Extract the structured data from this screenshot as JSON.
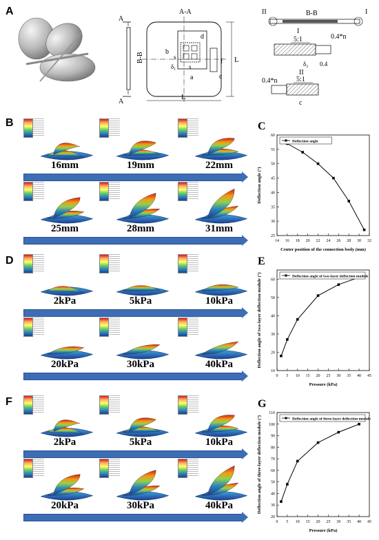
{
  "panelA": {
    "letter": "A",
    "section_aa": "A-A",
    "section_bb": "B-B",
    "section_bb_side": "B-B",
    "mark_a_top": "A",
    "mark_a_bottom": "A",
    "mark_i": "I",
    "mark_ii": "II",
    "mark_i_detail": "I",
    "mark_ii_detail": "II",
    "dim_a": "a",
    "dim_b": "b",
    "dim_c": "c",
    "dim_d": "d",
    "dim_f": "f",
    "dim_s": "s",
    "dim_s_small": "s",
    "dim_L_h": "L",
    "dim_L_v": "L",
    "dim_delta1": "δ₁",
    "dim_delta2": "δ₂",
    "scale1": "5:1",
    "scale2": "5:1",
    "dim_04n_top": "0.4*n",
    "dim_04": "0.4",
    "dim_04n_bottom": "0.4*n",
    "dim_c_detail": "c"
  },
  "panelB": {
    "letter": "B",
    "labels": [
      "16mm",
      "19mm",
      "22mm",
      "25mm",
      "28mm",
      "31mm"
    ]
  },
  "panelD": {
    "letter": "D",
    "labels": [
      "2kPa",
      "5kPa",
      "10kPa",
      "20kPa",
      "30kPa",
      "40kPa"
    ]
  },
  "panelF": {
    "letter": "F",
    "labels": [
      "2kPa",
      "5kPa",
      "10kPa",
      "20kPa",
      "30kPa",
      "40kPa"
    ]
  },
  "colors": {
    "arrow": "#3d6db5",
    "leaf_top": "#d7191c",
    "leaf_mid": "#8fd14f",
    "leaf_bottom": "#1c3f94"
  },
  "chart_data": [
    {
      "letter": "C",
      "type": "line",
      "x": [
        16,
        19,
        22,
        25,
        28,
        31
      ],
      "values": [
        57,
        54,
        50,
        45,
        37,
        27
      ],
      "xlabel": "Center position of the connection body (mm)",
      "ylabel": "Deflection angle (°)",
      "legend": "Deflection angle",
      "xlim": [
        14,
        32
      ],
      "ylim": [
        25,
        60
      ],
      "xticks": [
        "14",
        "16",
        "18",
        "20",
        "22",
        "24",
        "26",
        "28",
        "30",
        "32"
      ],
      "yticks": [
        "25",
        "30",
        "35",
        "40",
        "45",
        "50",
        "55",
        "60"
      ]
    },
    {
      "letter": "E",
      "type": "line",
      "x": [
        2,
        5,
        10,
        20,
        30,
        40
      ],
      "values": [
        18,
        27,
        38,
        51,
        57,
        61
      ],
      "xlabel": "Pressure (kPa)",
      "ylabel": "Deflection angle of two-layer deflection module (°)",
      "legend": "Deflection angle of two-layer deflection module",
      "xlim": [
        0,
        45
      ],
      "ylim": [
        10,
        65
      ],
      "xticks": [
        "0",
        "5",
        "10",
        "15",
        "20",
        "25",
        "30",
        "35",
        "40",
        "45"
      ],
      "yticks": [
        "10",
        "20",
        "30",
        "40",
        "50",
        "60"
      ]
    },
    {
      "letter": "G",
      "type": "line",
      "x": [
        2,
        5,
        10,
        20,
        30,
        40
      ],
      "values": [
        33,
        48,
        68,
        84,
        93,
        100
      ],
      "xlabel": "Pressure (kPa)",
      "ylabel": "Deflection angle of three-layer deflection module (°)",
      "legend": "Deflection angle of three-layer deflection module",
      "xlim": [
        0,
        45
      ],
      "ylim": [
        20,
        110
      ],
      "xticks": [
        "0",
        "5",
        "10",
        "15",
        "20",
        "25",
        "30",
        "35",
        "40",
        "45"
      ],
      "yticks": [
        "20",
        "30",
        "40",
        "50",
        "60",
        "70",
        "80",
        "90",
        "100",
        "110"
      ]
    }
  ]
}
